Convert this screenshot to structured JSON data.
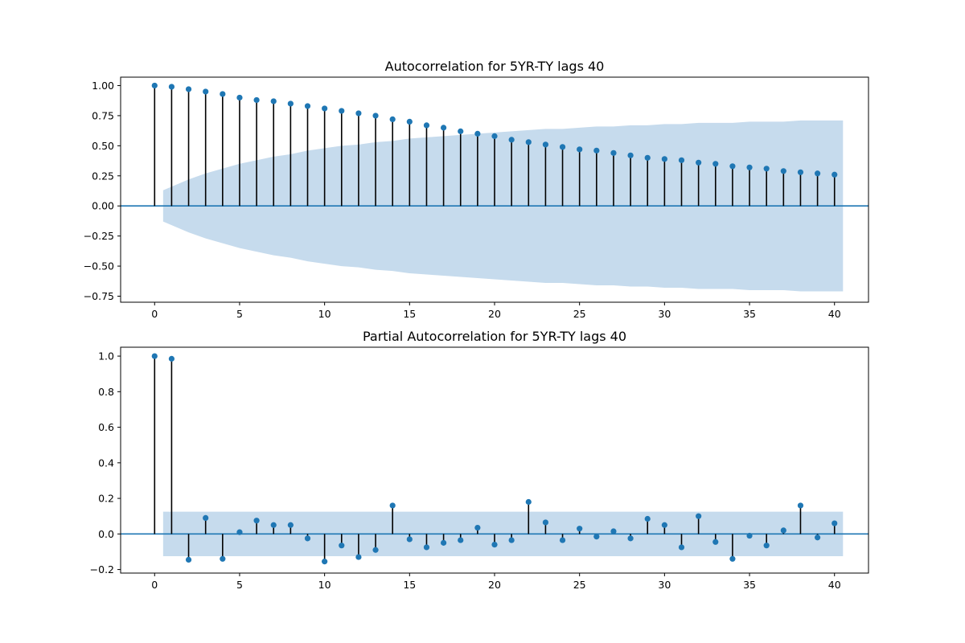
{
  "chart_data": [
    {
      "type": "scatter",
      "plot": "stem",
      "title": "Autocorrelation for 5YR-TY lags 40",
      "xlabel": "",
      "ylabel": "",
      "xlim": [
        -2,
        42
      ],
      "ylim": [
        -0.8,
        1.07
      ],
      "xticks": [
        0,
        5,
        10,
        15,
        20,
        25,
        30,
        35,
        40
      ],
      "yticks": [
        -0.75,
        -0.5,
        -0.25,
        0.0,
        0.25,
        0.5,
        0.75,
        1.0
      ],
      "ytick_labels": [
        "−0.75",
        "−0.50",
        "−0.25",
        "0.00",
        "0.25",
        "0.50",
        "0.75",
        "1.00"
      ],
      "grid": false,
      "x": [
        0,
        1,
        2,
        3,
        4,
        5,
        6,
        7,
        8,
        9,
        10,
        11,
        12,
        13,
        14,
        15,
        16,
        17,
        18,
        19,
        20,
        21,
        22,
        23,
        24,
        25,
        26,
        27,
        28,
        29,
        30,
        31,
        32,
        33,
        34,
        35,
        36,
        37,
        38,
        39,
        40
      ],
      "values": [
        1.0,
        0.99,
        0.97,
        0.95,
        0.93,
        0.9,
        0.88,
        0.87,
        0.85,
        0.83,
        0.81,
        0.79,
        0.77,
        0.75,
        0.72,
        0.7,
        0.67,
        0.65,
        0.62,
        0.6,
        0.58,
        0.55,
        0.53,
        0.51,
        0.49,
        0.47,
        0.46,
        0.44,
        0.42,
        0.4,
        0.39,
        0.38,
        0.36,
        0.35,
        0.33,
        0.32,
        0.31,
        0.29,
        0.28,
        0.27,
        0.26
      ],
      "confidence_band": {
        "color": "#c6dbed",
        "x": [
          0.5,
          1,
          2,
          3,
          4,
          5,
          6,
          7,
          8,
          9,
          10,
          11,
          12,
          13,
          14,
          15,
          16,
          17,
          18,
          19,
          20,
          21,
          22,
          23,
          24,
          25,
          26,
          27,
          28,
          29,
          30,
          31,
          32,
          33,
          34,
          35,
          36,
          37,
          38,
          39,
          40.5
        ],
        "upper": [
          0.13,
          0.16,
          0.22,
          0.27,
          0.31,
          0.35,
          0.38,
          0.41,
          0.43,
          0.46,
          0.48,
          0.5,
          0.51,
          0.53,
          0.54,
          0.56,
          0.57,
          0.58,
          0.59,
          0.6,
          0.61,
          0.62,
          0.63,
          0.64,
          0.64,
          0.65,
          0.66,
          0.66,
          0.67,
          0.67,
          0.68,
          0.68,
          0.69,
          0.69,
          0.69,
          0.7,
          0.7,
          0.7,
          0.71,
          0.71,
          0.71
        ]
      },
      "colors": {
        "marker": "#1f77b4",
        "stem": "#000000",
        "zero_line": "#1f77b4"
      }
    },
    {
      "type": "scatter",
      "plot": "stem",
      "title": "Partial Autocorrelation for 5YR-TY lags 40",
      "xlabel": "",
      "ylabel": "",
      "xlim": [
        -2,
        42
      ],
      "ylim": [
        -0.22,
        1.05
      ],
      "xticks": [
        0,
        5,
        10,
        15,
        20,
        25,
        30,
        35,
        40
      ],
      "yticks": [
        -0.2,
        0.0,
        0.2,
        0.4,
        0.6,
        0.8,
        1.0
      ],
      "ytick_labels": [
        "−0.2",
        "0.0",
        "0.2",
        "0.4",
        "0.6",
        "0.8",
        "1.0"
      ],
      "grid": false,
      "x": [
        0,
        1,
        2,
        3,
        4,
        5,
        6,
        7,
        8,
        9,
        10,
        11,
        12,
        13,
        14,
        15,
        16,
        17,
        18,
        19,
        20,
        21,
        22,
        23,
        24,
        25,
        26,
        27,
        28,
        29,
        30,
        31,
        32,
        33,
        34,
        35,
        36,
        37,
        38,
        39,
        40
      ],
      "values": [
        1.0,
        0.985,
        -0.145,
        0.09,
        -0.14,
        0.01,
        0.075,
        0.05,
        0.05,
        -0.025,
        -0.155,
        -0.065,
        -0.13,
        -0.09,
        0.16,
        -0.03,
        -0.075,
        -0.05,
        -0.035,
        0.035,
        -0.06,
        -0.035,
        0.18,
        0.065,
        -0.035,
        0.03,
        -0.015,
        0.015,
        -0.025,
        0.085,
        0.05,
        -0.075,
        0.1,
        -0.045,
        -0.14,
        -0.01,
        -0.065,
        0.02,
        0.16,
        -0.02,
        0.06
      ],
      "confidence_band": {
        "color": "#c6dbed",
        "x": [
          0.5,
          40.5
        ],
        "upper": [
          0.125,
          0.125
        ]
      },
      "colors": {
        "marker": "#1f77b4",
        "stem": "#000000",
        "zero_line": "#1f77b4"
      }
    }
  ]
}
